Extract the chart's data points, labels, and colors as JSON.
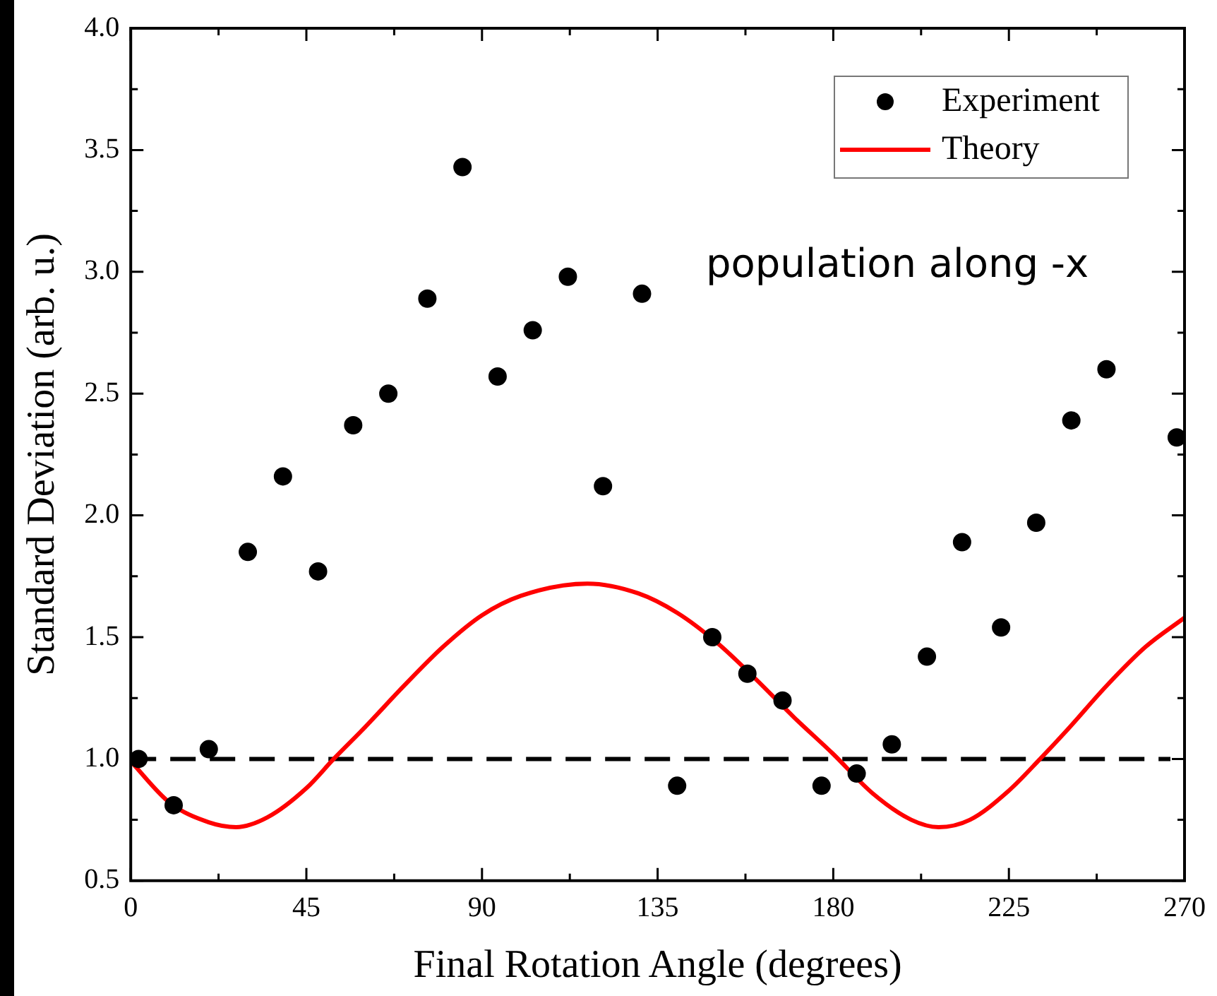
{
  "chart_data": {
    "type": "scatter",
    "xlabel": "Final Rotation Angle (degrees)",
    "ylabel": "Standard Deviation (arb. u.)",
    "xlim": [
      0,
      270
    ],
    "xticks": [
      0,
      45,
      90,
      135,
      180,
      225,
      270
    ],
    "ylim": [
      0.5,
      4.0
    ],
    "yticks": [
      0.5,
      {
        "value": 1,
        "label": "1.0"
      },
      1.5,
      {
        "value": 2,
        "label": "2.0"
      },
      2.5,
      {
        "value": 3,
        "label": "3.0"
      },
      3.5,
      {
        "value": 4,
        "label": "4.0"
      }
    ],
    "legend": "top right",
    "marker": "circle",
    "grid": false,
    "series": [
      {
        "name": "Experiment",
        "type": "scatter",
        "color": "#000000",
        "x": [
          2,
          11,
          20,
          30,
          39,
          48,
          57,
          66,
          76,
          85,
          94,
          103,
          112,
          121,
          131,
          140,
          149,
          158,
          167,
          177,
          186,
          195,
          204,
          213,
          223,
          232,
          241,
          250,
          268
        ],
        "values": [
          1.0,
          0.81,
          1.04,
          1.85,
          2.16,
          1.77,
          2.37,
          2.5,
          2.89,
          3.43,
          2.57,
          2.76,
          2.98,
          2.12,
          2.91,
          0.89,
          1.5,
          1.35,
          1.24,
          0.89,
          0.94,
          1.06,
          1.42,
          1.89,
          1.54,
          1.97,
          2.39,
          2.6,
          2.32
        ]
      },
      {
        "name": "Theory",
        "type": "line",
        "color": "#ff0000",
        "marker": "none",
        "line_style": "solid",
        "x": [
          0,
          10,
          20,
          27,
          35,
          45,
          52,
          60,
          70,
          80,
          90,
          100,
          117,
          130,
          140,
          150,
          160,
          170,
          180,
          190,
          200,
          207,
          215,
          225,
          233,
          240,
          250,
          260,
          270
        ],
        "values": [
          0.99,
          0.82,
          0.74,
          0.72,
          0.76,
          0.88,
          1.0,
          1.13,
          1.3,
          1.46,
          1.59,
          1.67,
          1.72,
          1.68,
          1.6,
          1.48,
          1.33,
          1.17,
          1.02,
          0.86,
          0.75,
          0.72,
          0.75,
          0.87,
          1.0,
          1.12,
          1.3,
          1.46,
          1.58
        ]
      }
    ],
    "ref_lines": [
      {
        "axis": "y",
        "value": 1.0,
        "color": "#000000",
        "line_style": "dashed"
      }
    ],
    "annotations": [
      "population along -x"
    ]
  }
}
